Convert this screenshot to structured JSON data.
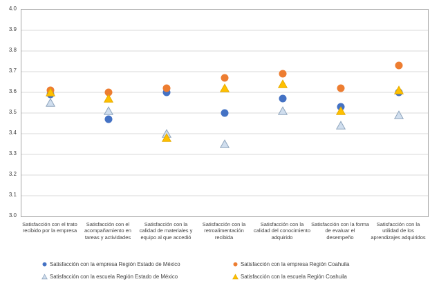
{
  "chart_data": {
    "type": "scatter",
    "title": "",
    "categories": [
      "Satisfacción con el trato recibido por la empresa",
      "Satisfacción con el acompañamiento en tareas y actividades",
      "Satisfacción con la calidad de materiales y equipo al que accedió",
      "Satisfacción con la retroalimentación recibida",
      "Satisfacción con la calidad del conocimiento adquirido",
      "Satisfacción con la forma de evaluar el desempeño",
      "Satisfacción con la utilidad de los aprendizajes adquiridos"
    ],
    "series": [
      {
        "name": "Satisfacción con la empresa Región Estado de México",
        "marker": "circle",
        "fill": "#4472C4",
        "stroke": "#4472C4",
        "values": [
          3.59,
          3.47,
          3.6,
          3.5,
          3.57,
          3.53,
          3.6
        ]
      },
      {
        "name": "Satisfacción con la empresa Región Coahuila",
        "marker": "circle",
        "fill": "#ED7D31",
        "stroke": "#ED7D31",
        "values": [
          3.61,
          3.6,
          3.62,
          3.67,
          3.69,
          3.62,
          3.73
        ]
      },
      {
        "name": "Satisfacción con la escuela Región Estado de México",
        "marker": "triangle",
        "fill": "#D0DEEE",
        "stroke": "#8FA5BD",
        "values": [
          3.55,
          3.51,
          3.4,
          3.35,
          3.51,
          3.44,
          3.49
        ]
      },
      {
        "name": "Satisfacción con la escuela Región Coahuila",
        "marker": "triangle",
        "fill": "#FFC000",
        "stroke": "#E7AC00",
        "values": [
          3.6,
          3.57,
          3.38,
          3.62,
          3.64,
          3.51,
          3.61
        ]
      }
    ],
    "ylim": [
      3.0,
      4.0
    ],
    "ytick_step": 0.1,
    "ytick_labels": [
      "4.0",
      "3.9",
      "3.8",
      "3.7",
      "3.6",
      "3.5",
      "3.4",
      "3.3",
      "3.2",
      "3.1",
      "3.0"
    ],
    "grid": true,
    "gridline_color": "#D9D9D9",
    "plot_border_color": "#A6A6A6",
    "legend_position": "bottom"
  },
  "legend": {
    "items": [
      {
        "label": "Satisfacción con la empresa Región Estado de México",
        "icon": "circle-blue"
      },
      {
        "label": "Satisfacción con la empresa Región Coahuila",
        "icon": "circle-orange"
      },
      {
        "label": "Satisfacción con la escuela Región Estado de México",
        "icon": "triangle-gray"
      },
      {
        "label": "Satisfacción con la escuela Región Coahuila",
        "icon": "triangle-yellow"
      }
    ]
  }
}
